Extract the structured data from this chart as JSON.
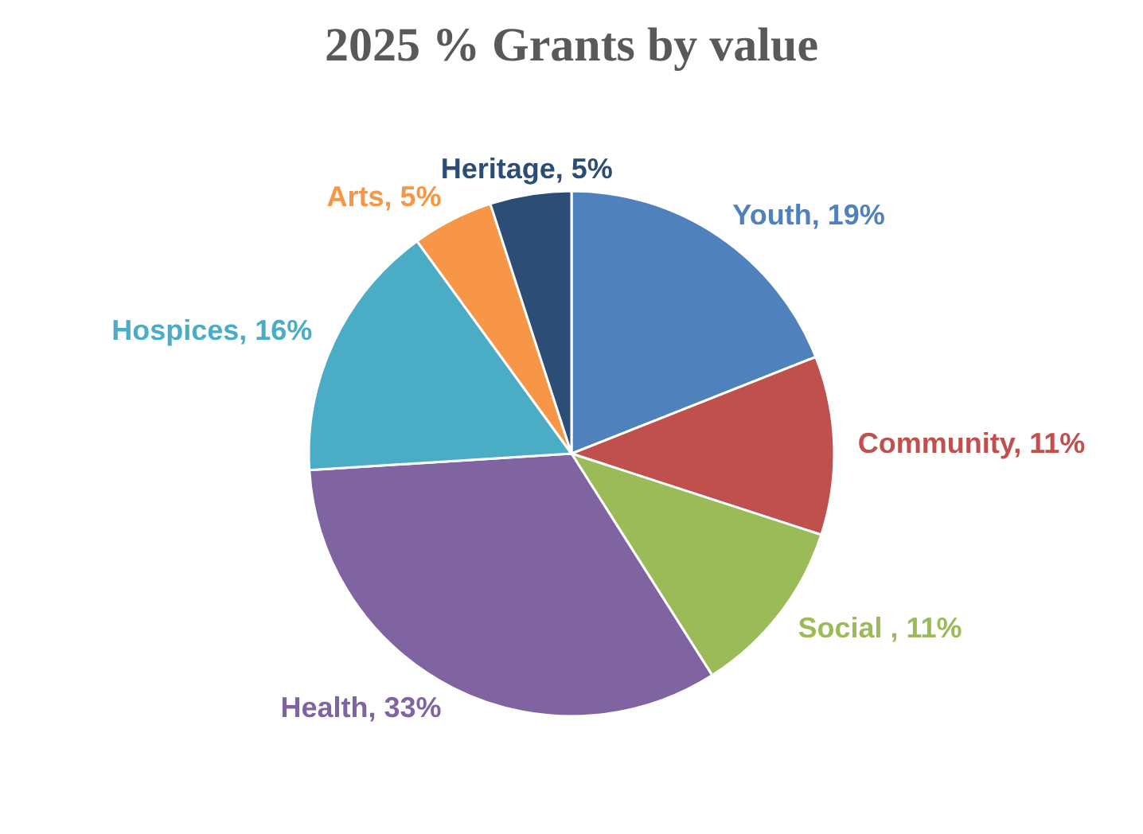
{
  "chart_data": {
    "type": "pie",
    "title": "2025 % Grants by value",
    "categories": [
      "Youth",
      "Community",
      "Social ",
      "Health",
      "Hospices",
      "Arts",
      "Heritage"
    ],
    "values": [
      19,
      11,
      11,
      33,
      16,
      5,
      5
    ],
    "value_labels": [
      "19%",
      "11%",
      "11%",
      "33%",
      "16%",
      "5%",
      "5%"
    ],
    "colors": [
      "#4f81bd",
      "#c0504d",
      "#9bbb59",
      "#8064a2",
      "#4bacc6",
      "#f79646",
      "#2c4d75"
    ],
    "legend": false
  }
}
